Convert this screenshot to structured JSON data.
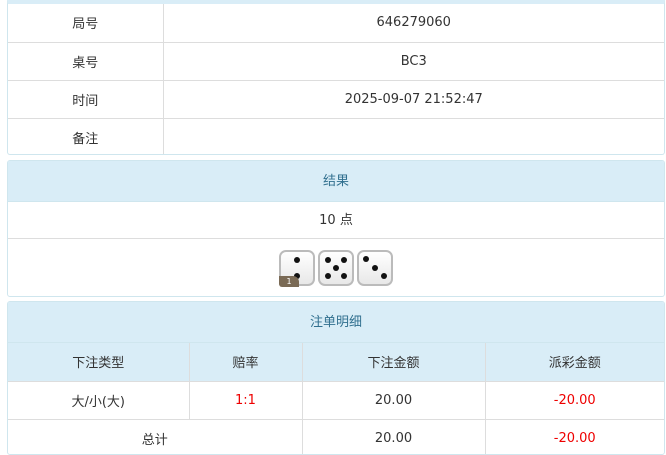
{
  "info": {
    "rows": [
      {
        "label": "局号",
        "value": "646279060"
      },
      {
        "label": "桌号",
        "value": "BC3"
      },
      {
        "label": "时间",
        "value": "2025-09-07 21:52:47"
      },
      {
        "label": "备注",
        "value": ""
      }
    ]
  },
  "result": {
    "title": "结果",
    "points": "10 点",
    "dice": [
      2,
      5,
      3
    ],
    "badge": "1"
  },
  "bets": {
    "title": "注单明细",
    "columns": [
      "下注类型",
      "赔率",
      "下注金额",
      "派彩金额"
    ],
    "rows": [
      {
        "type": "大/小(大)",
        "odds": "1:1",
        "amount": "20.00",
        "payout": "-20.00"
      }
    ],
    "total": {
      "label": "总计",
      "amount": "20.00",
      "payout": "-20.00"
    },
    "colors": {
      "negative": "#e00000",
      "header_bg": "#d9edf7"
    }
  }
}
